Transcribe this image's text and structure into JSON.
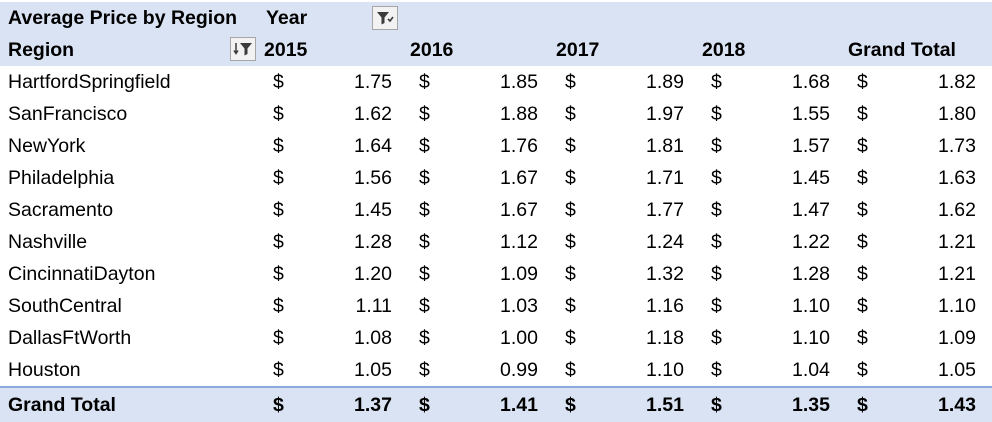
{
  "pivot": {
    "title": "Average Price by Region",
    "column_field": "Year",
    "row_field": "Region",
    "currency_symbol": "$",
    "columns": [
      "2015",
      "2016",
      "2017",
      "2018",
      "Grand Total"
    ],
    "rows": [
      {
        "region": "HartfordSpringfield",
        "values": [
          "1.75",
          "1.85",
          "1.89",
          "1.68",
          "1.82"
        ]
      },
      {
        "region": "SanFrancisco",
        "values": [
          "1.62",
          "1.88",
          "1.97",
          "1.55",
          "1.80"
        ]
      },
      {
        "region": "NewYork",
        "values": [
          "1.64",
          "1.76",
          "1.81",
          "1.57",
          "1.73"
        ]
      },
      {
        "region": "Philadelphia",
        "values": [
          "1.56",
          "1.67",
          "1.71",
          "1.45",
          "1.63"
        ]
      },
      {
        "region": "Sacramento",
        "values": [
          "1.45",
          "1.67",
          "1.77",
          "1.47",
          "1.62"
        ]
      },
      {
        "region": "Nashville",
        "values": [
          "1.28",
          "1.12",
          "1.24",
          "1.22",
          "1.21"
        ]
      },
      {
        "region": "CincinnatiDayton",
        "values": [
          "1.20",
          "1.09",
          "1.32",
          "1.28",
          "1.21"
        ]
      },
      {
        "region": "SouthCentral",
        "values": [
          "1.11",
          "1.03",
          "1.16",
          "1.10",
          "1.10"
        ]
      },
      {
        "region": "DallasFtWorth",
        "values": [
          "1.08",
          "1.00",
          "1.18",
          "1.10",
          "1.09"
        ]
      },
      {
        "region": "Houston",
        "values": [
          "1.05",
          "0.99",
          "1.10",
          "1.04",
          "1.05"
        ]
      }
    ],
    "grand_total": {
      "label": "Grand Total",
      "values": [
        "1.37",
        "1.41",
        "1.51",
        "1.35",
        "1.43"
      ]
    },
    "icons": {
      "column_filter": "filter-icon",
      "row_filter": "sort-filter-icon"
    },
    "colors": {
      "header_bg": "#dae3f3",
      "total_border": "#8ea9db"
    }
  }
}
